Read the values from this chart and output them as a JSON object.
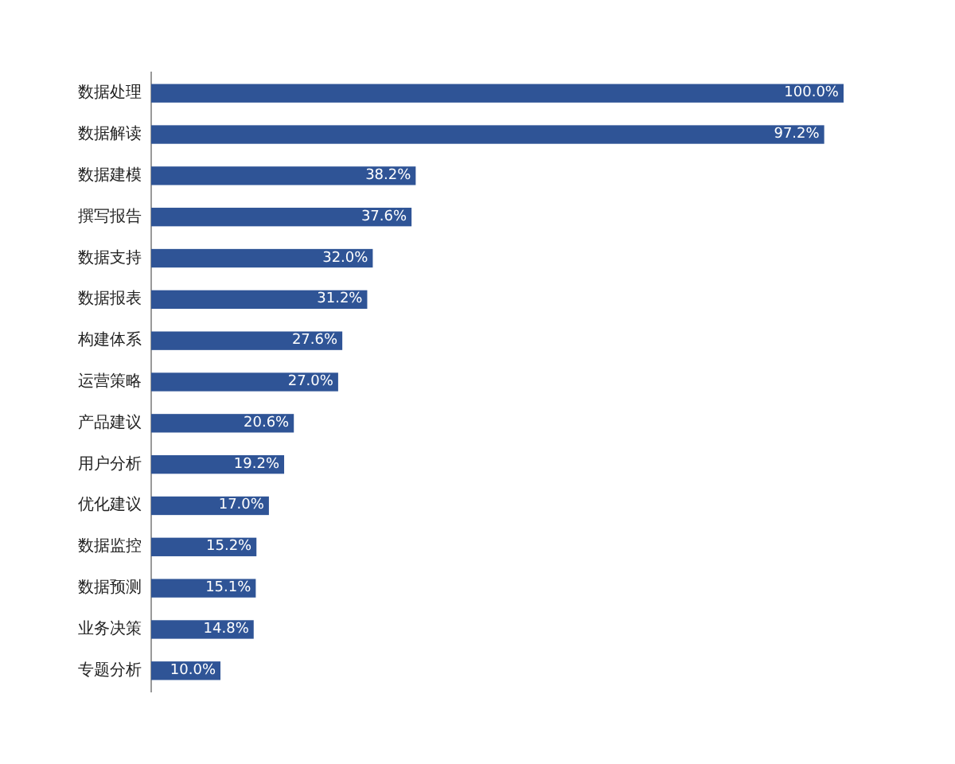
{
  "chart_data": {
    "type": "bar",
    "orientation": "horizontal",
    "color": "#2f5496",
    "categories": [
      "数据处理",
      "数据解读",
      "数据建模",
      "撰写报告",
      "数据支持",
      "数据报表",
      "构建体系",
      "运营策略",
      "产品建议",
      "用户分析",
      "优化建议",
      "数据监控",
      "数据预测",
      "业务决策",
      "专题分析"
    ],
    "values": [
      100.0,
      97.2,
      38.2,
      37.6,
      32.0,
      31.2,
      27.6,
      27.0,
      20.6,
      19.2,
      17.0,
      15.2,
      15.1,
      14.8,
      10.0
    ],
    "value_labels": [
      "100.0%",
      "97.2%",
      "38.2%",
      "37.6%",
      "32.0%",
      "31.2%",
      "27.6%",
      "27.0%",
      "20.6%",
      "19.2%",
      "17.0%",
      "15.2%",
      "15.1%",
      "14.8%",
      "10.0%"
    ]
  }
}
